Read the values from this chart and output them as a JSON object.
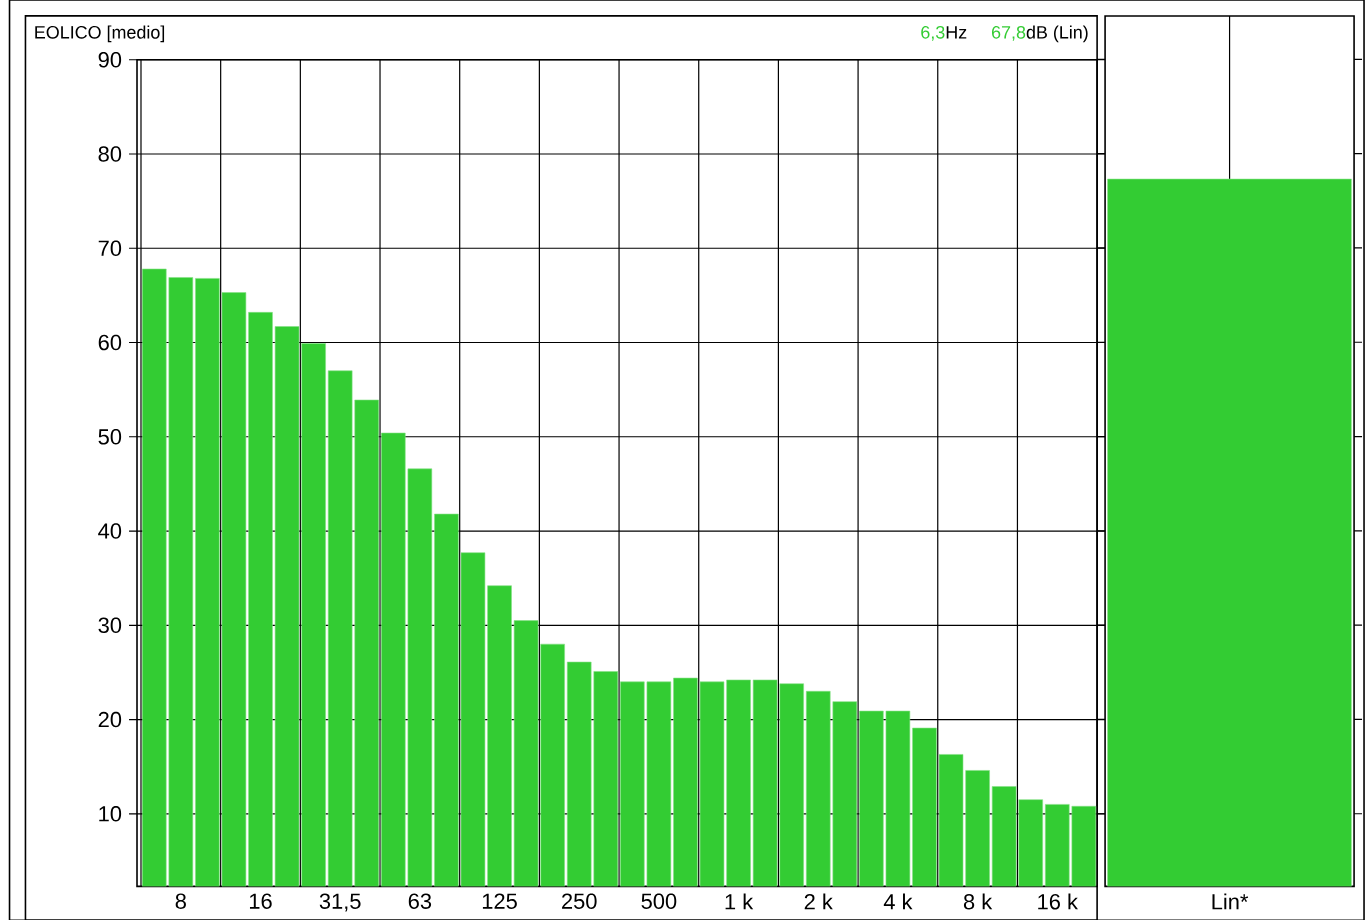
{
  "chart_data": [
    {
      "type": "bar",
      "title": "EOLICO [medio]",
      "annotations": [
        "6,3",
        "Hz",
        "67,8",
        "dB (Lin)"
      ],
      "categories": [
        null,
        "8",
        null,
        null,
        "16",
        null,
        null,
        "31,5",
        null,
        null,
        "63",
        null,
        null,
        "125",
        null,
        null,
        "250",
        null,
        null,
        "500",
        null,
        null,
        "1 k",
        null,
        null,
        "2 k",
        null,
        null,
        "4 k",
        null,
        null,
        "8 k",
        null,
        null,
        "16 k",
        null
      ],
      "values": [
        67.8,
        66.9,
        66.8,
        65.3,
        63.2,
        61.7,
        59.9,
        57.0,
        53.9,
        50.4,
        46.6,
        41.8,
        37.7,
        34.2,
        30.5,
        28.0,
        26.1,
        25.1,
        24.0,
        24.0,
        24.4,
        24.0,
        24.2,
        24.2,
        23.8,
        23.0,
        21.9,
        20.9,
        20.9,
        19.1,
        16.3,
        14.6,
        12.9,
        11.5,
        11.0,
        10.8
      ],
      "color": "#33cc33",
      "ylim": [
        2.3,
        90
      ],
      "yticks": [
        10,
        20,
        30,
        40,
        50,
        60,
        70,
        80,
        90
      ],
      "grid": true
    },
    {
      "type": "bar",
      "categories": [
        "Lin*"
      ],
      "values": [
        77.3
      ],
      "color": "#33cc33",
      "ylim": [
        2.3,
        94.6
      ],
      "yticks": [
        10,
        20,
        30,
        40,
        50,
        60,
        70,
        80,
        90
      ],
      "grid": "x",
      "tick_labels": "x"
    }
  ]
}
